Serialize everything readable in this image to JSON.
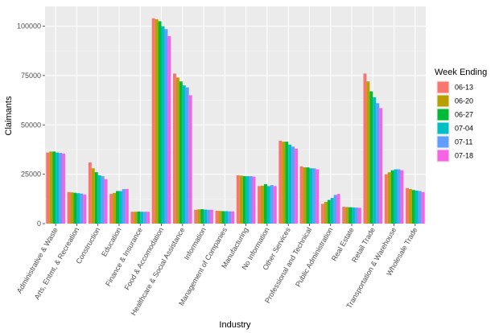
{
  "chart_data": {
    "type": "bar",
    "xlabel": "Industry",
    "ylabel": "Claimants",
    "ylim": [
      0,
      110000
    ],
    "yticks": [
      0,
      25000,
      50000,
      75000,
      100000
    ],
    "ytick_labels": [
      "0",
      "25000",
      "50000",
      "75000",
      "100000"
    ],
    "grid": true,
    "legend": {
      "title": "Week Ending",
      "position": "right"
    },
    "categories": [
      "Administrative & Waste",
      "Arts, Entmt, & Recreation",
      "Construction",
      "Education",
      "Finance & Insurance",
      "Food & Accomodation",
      "Healthcare & Social Assistance",
      "Information",
      "Management of Companies",
      "Manufacturing",
      "No Information",
      "Other Services",
      "Professional and Technical",
      "Public Administration",
      "Real Estate",
      "Retail Trade",
      "Transportation & Warehouse",
      "Wholesale Trade"
    ],
    "series": [
      {
        "name": "06-13",
        "color": "#F8766D",
        "values": [
          36000,
          16000,
          31000,
          15000,
          6000,
          104000,
          76000,
          7000,
          6500,
          24500,
          19000,
          42000,
          29000,
          10000,
          8500,
          76000,
          25000,
          18000
        ]
      },
      {
        "name": "06-20",
        "color": "#B79F00",
        "values": [
          36500,
          15800,
          28000,
          15500,
          6000,
          103500,
          74000,
          7200,
          6400,
          24300,
          19200,
          41500,
          28500,
          11000,
          8400,
          72000,
          26000,
          17500
        ]
      },
      {
        "name": "06-27",
        "color": "#00BA38",
        "values": [
          36500,
          15600,
          26000,
          16500,
          6100,
          102500,
          72000,
          7300,
          6300,
          24000,
          20000,
          41500,
          28500,
          12000,
          8300,
          67000,
          27000,
          17000
        ]
      },
      {
        "name": "07-04",
        "color": "#00BFC4",
        "values": [
          36000,
          15400,
          24500,
          16500,
          6000,
          100000,
          70000,
          7100,
          6300,
          24000,
          19000,
          40000,
          28000,
          13000,
          8200,
          64000,
          27500,
          16700
        ]
      },
      {
        "name": "07-11",
        "color": "#619CFF",
        "values": [
          35800,
          15200,
          24000,
          17500,
          6000,
          98500,
          69000,
          7000,
          6200,
          24000,
          19500,
          39000,
          28000,
          14500,
          8100,
          61000,
          27500,
          16500
        ]
      },
      {
        "name": "07-18",
        "color": "#F564E3",
        "values": [
          35500,
          14800,
          22500,
          17500,
          6000,
          95000,
          65000,
          7000,
          6200,
          23800,
          19000,
          38000,
          27500,
          15000,
          8000,
          58500,
          27000,
          16000
        ]
      }
    ]
  }
}
